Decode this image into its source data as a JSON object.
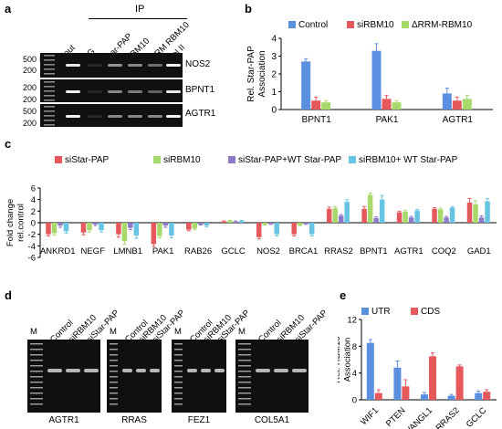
{
  "panel_a": {
    "label": "a",
    "ip_header": "IP",
    "lanes": [
      "M",
      "Input",
      "IgG",
      "Star-PAP",
      "RBM10",
      "ΔRRM RBM10",
      "Pol II"
    ],
    "marker_sizes": [
      "500",
      "200",
      "200",
      "200",
      "500",
      "200"
    ],
    "genes": [
      "NOS2",
      "BPNT1",
      "AGTR1"
    ]
  },
  "panel_d": {
    "label": "d",
    "gels": [
      {
        "lanes": [
          "M",
          "Control",
          "siRBM10",
          "siStar-PAP"
        ],
        "caption": "AGTR1"
      },
      {
        "lanes": [
          "M",
          "Control",
          "siRBM10",
          "siStar-PAP"
        ],
        "caption": "RRAS"
      },
      {
        "lanes": [
          "M",
          "Control",
          "siRBM10",
          "siStar-PAP"
        ],
        "caption": "FEZ1"
      },
      {
        "lanes": [
          "M",
          "Control",
          "siRBM10",
          "siStar-PAP"
        ],
        "caption": "COL5A1"
      }
    ]
  },
  "chart_data": [
    {
      "panel": "b",
      "type": "bar",
      "ylabel": "Rel. Star-PAP Association",
      "ylim": [
        0,
        4
      ],
      "yticks": [
        0,
        1,
        2,
        3,
        4
      ],
      "categories": [
        "BPNT1",
        "PAK1",
        "AGTR1"
      ],
      "legend_position": "top",
      "series": [
        {
          "name": "Control",
          "color": "#5b8fe0",
          "values": [
            2.7,
            3.3,
            0.9
          ],
          "errors": [
            0.15,
            0.4,
            0.3
          ]
        },
        {
          "name": "siRBM10",
          "color": "#e5585b",
          "values": [
            0.5,
            0.6,
            0.5
          ],
          "errors": [
            0.2,
            0.2,
            0.2
          ]
        },
        {
          "name": "ΔRRM-RBM10",
          "color": "#a6d96a",
          "values": [
            0.4,
            0.4,
            0.6
          ],
          "errors": [
            0.1,
            0.1,
            0.2
          ]
        }
      ]
    },
    {
      "panel": "c",
      "type": "bar",
      "ylabel": "Fold change rel.control",
      "ylim": [
        -6,
        6
      ],
      "yticks": [
        -6,
        -4,
        -2,
        0,
        2,
        4,
        6
      ],
      "categories": [
        "ANKRD1",
        "NEGF",
        "LMNB1",
        "PAK1",
        "RAB26",
        "GCLC",
        "NOS2",
        "BRCA1",
        "RRAS2",
        "BPNT1",
        "AGTR1",
        "COQ2",
        "GAD1"
      ],
      "legend_position": "top",
      "series": [
        {
          "name": "siStar-PAP",
          "color": "#e5585b",
          "values": [
            -2.0,
            -1.7,
            -2.0,
            -3.7,
            -1.2,
            0.2,
            -2.5,
            -2.0,
            2.4,
            2.4,
            1.8,
            2.4,
            3.5
          ],
          "errors": [
            0.3,
            0.4,
            0.5,
            0.4,
            0.2,
            0.1,
            0.3,
            0.3,
            0.3,
            0.4,
            0.2,
            0.2,
            0.7
          ]
        },
        {
          "name": "siRBM10",
          "color": "#a6d96a",
          "values": [
            -1.8,
            -1.3,
            -3.2,
            -2.3,
            -1.0,
            0.3,
            -0.3,
            -0.4,
            2.5,
            4.8,
            1.9,
            2.3,
            3.2
          ],
          "errors": [
            0.3,
            0.3,
            0.5,
            0.3,
            0.2,
            0.1,
            0.1,
            0.1,
            0.3,
            0.3,
            0.2,
            0.2,
            0.6
          ]
        },
        {
          "name": "siStar-PAP+WT Star-PAP",
          "color": "#8e78c8",
          "values": [
            -0.5,
            -0.3,
            -0.9,
            -0.5,
            -0.3,
            0.2,
            -0.2,
            -0.2,
            1.2,
            0.8,
            0.9,
            0.9,
            0.9
          ],
          "errors": [
            0.3,
            0.2,
            0.3,
            0.3,
            0.1,
            0.1,
            0.1,
            0.1,
            0.2,
            0.2,
            0.2,
            0.2,
            0.3
          ]
        },
        {
          "name": "siRBM10+ WT Star-PAP",
          "color": "#67c4e3",
          "values": [
            -1.5,
            -1.3,
            -2.2,
            -2.2,
            -0.5,
            0.3,
            -2.0,
            -2.0,
            3.6,
            4.0,
            2.1,
            2.6,
            3.7
          ],
          "errors": [
            0.3,
            0.3,
            0.5,
            0.4,
            0.2,
            0.1,
            0.3,
            0.3,
            0.4,
            0.7,
            0.2,
            0.2,
            0.5
          ]
        }
      ]
    },
    {
      "panel": "e",
      "type": "bar",
      "ylabel": "Rel. RBM10 Association",
      "ylim": [
        0,
        12
      ],
      "yticks": [
        0,
        4,
        8,
        12
      ],
      "categories": [
        "WIF1",
        "PTEN",
        "VANGL1",
        "RRAS2",
        "GCLC"
      ],
      "legend_position": "top",
      "series": [
        {
          "name": "UTR",
          "color": "#5b8fe0",
          "values": [
            8.5,
            4.8,
            0.8,
            0.6,
            1.0
          ],
          "errors": [
            0.5,
            1.0,
            0.3,
            0.2,
            0.3
          ]
        },
        {
          "name": "CDS",
          "color": "#e5585b",
          "values": [
            1.0,
            2.0,
            6.5,
            5.0,
            1.2
          ],
          "errors": [
            0.5,
            1.0,
            0.5,
            0.2,
            0.3
          ]
        }
      ]
    }
  ]
}
